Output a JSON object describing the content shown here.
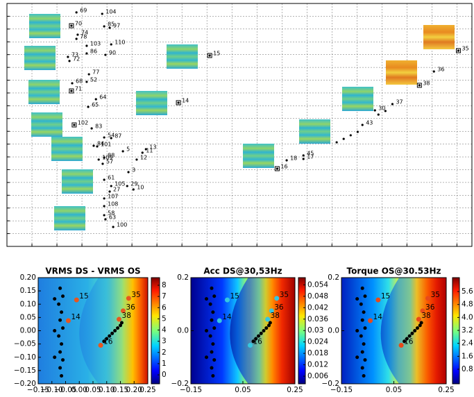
{
  "chart_data": [
    {
      "type": "scatter",
      "xlim": [
        -1,
        17.6
      ],
      "ylim": [
        0,
        19
      ],
      "xticks": [
        0,
        1,
        2,
        3,
        4,
        5,
        6,
        7,
        8,
        9,
        10,
        11,
        12,
        13,
        14,
        15,
        16,
        17
      ],
      "yticks": [
        1,
        2,
        3,
        4,
        5,
        6,
        7,
        8,
        9,
        10,
        11,
        12,
        13,
        14,
        15,
        16,
        17,
        18
      ],
      "grid": true,
      "x": [
        1.78,
        2.81,
        1.58,
        2.89,
        3.11,
        1.83,
        1.78,
        2.19,
        3.17,
        2.19,
        2.94,
        1.44,
        1.5,
        2.28,
        2.19,
        1.61,
        1.58,
        2.56,
        2.25,
        1.69,
        2.39,
        2.89,
        3.17,
        2.47,
        2.61,
        3.64,
        4.56,
        4.42,
        2.89,
        4.19,
        2.67,
        2.83,
        3.86,
        2.89,
        3.81,
        3.17,
        3.11,
        4.06,
        2.89,
        2.89,
        2.89,
        2.94,
        3.25,
        7.11,
        5.86,
        17.06,
        16.08,
        15.5,
        14.42,
        13.72,
        13.22,
        10.86,
        10.86,
        10.19,
        9.81,
        12.19,
        12.47,
        12.75,
        13.03,
        13.86,
        14.14
      ],
      "y": [
        18.3,
        18.19,
        17.26,
        17.21,
        17.1,
        16.56,
        16.23,
        15.69,
        15.8,
        15.09,
        14.98,
        14.82,
        14.5,
        13.46,
        12.87,
        12.76,
        12.16,
        11.51,
        10.91,
        9.5,
        9.23,
        8.52,
        8.47,
        7.87,
        7.82,
        7.44,
        7.6,
        7.33,
        6.95,
        6.79,
        6.79,
        6.46,
        5.81,
        5.21,
        4.72,
        4.72,
        4.29,
        4.45,
        3.75,
        3.15,
        2.44,
        2.12,
        1.52,
        14.93,
        11.24,
        15.31,
        13.68,
        12.6,
        11.13,
        10.64,
        9.5,
        7.11,
        6.84,
        6.73,
        6.08,
        8.14,
        8.41,
        8.69,
        8.96,
        10.31,
        10.59
      ],
      "point_labels": [
        "69",
        "104",
        "70",
        "85",
        "97",
        "74",
        "78",
        "103",
        "110",
        "86",
        "90",
        "73",
        "72",
        "77",
        "52",
        "68",
        "71",
        "64",
        "65",
        "102",
        "83",
        "54",
        "87",
        "84",
        "101",
        "5",
        "13",
        "11",
        "88",
        "12",
        "109",
        "57",
        "3",
        "61",
        "29",
        "105",
        "27",
        "10",
        "107",
        "108",
        "58",
        "63",
        "100",
        "15",
        "14",
        "35",
        "36",
        "38",
        "37",
        "30",
        "43",
        "45",
        "17",
        "18",
        "16",
        null,
        null,
        null,
        null,
        null,
        null
      ],
      "boxed": [
        false,
        false,
        true,
        false,
        false,
        false,
        false,
        false,
        false,
        false,
        false,
        false,
        false,
        false,
        false,
        false,
        true,
        false,
        false,
        true,
        false,
        false,
        false,
        false,
        false,
        false,
        false,
        false,
        false,
        false,
        false,
        false,
        false,
        false,
        false,
        false,
        false,
        false,
        false,
        false,
        false,
        false,
        false,
        true,
        true,
        true,
        false,
        true,
        false,
        false,
        false,
        false,
        false,
        false,
        true,
        false,
        false,
        false,
        false,
        false,
        false
      ],
      "color": "#000000"
    },
    {
      "type": "contour",
      "title": "VRMS DS - VRMS OS",
      "xlim": [
        -0.15,
        0.25
      ],
      "ylim": [
        -0.2,
        0.2
      ],
      "xticks": [
        {
          "value": -0.15,
          "label": "−0.15"
        },
        {
          "value": -0.1,
          "label": "−0.10"
        },
        {
          "value": -0.05,
          "label": "−0.05"
        },
        {
          "value": 0,
          "label": "0.00"
        },
        {
          "value": 0.05,
          "label": "0.05"
        },
        {
          "value": 0.1,
          "label": "0.10"
        },
        {
          "value": 0.15,
          "label": "0.15"
        },
        {
          "value": 0.2,
          "label": "0.20"
        },
        {
          "value": 0.25,
          "label": "0.25"
        }
      ],
      "yticks": [
        {
          "value": 0.2,
          "label": "0.20"
        },
        {
          "value": 0.15,
          "label": "0.15"
        },
        {
          "value": 0.1,
          "label": "0.10"
        },
        {
          "value": 0.05,
          "label": "0.05"
        },
        {
          "value": 0,
          "label": "0.00"
        },
        {
          "value": -0.05,
          "label": "−0.05"
        },
        {
          "value": -0.1,
          "label": "−0.10"
        },
        {
          "value": -0.15,
          "label": "−0.15"
        },
        {
          "value": -0.2,
          "label": "−0.20"
        }
      ],
      "colorbar_lim": [
        -0.8,
        8.68
      ],
      "colorbar_ticks": [
        8,
        7,
        6,
        5,
        4,
        3,
        2,
        1,
        0
      ],
      "x": [
        0.18,
        0.16,
        0.145,
        -0.01,
        -0.04,
        0.078,
        -0.07,
        -0.06,
        -0.075,
        -0.065,
        -0.07,
        -0.06,
        -0.075,
        -0.065,
        -0.07,
        -0.06,
        -0.07,
        -0.065,
        -0.09,
        -0.09,
        -0.09,
        0.09,
        0.1,
        0.11,
        0.12,
        0.13,
        0.14,
        0.15,
        0.155
      ],
      "y": [
        0.122,
        0.075,
        0.043,
        0.116,
        0.038,
        -0.055,
        0.16,
        0.13,
        0.1,
        0.07,
        0.04,
        0.01,
        -0.02,
        -0.05,
        -0.08,
        -0.11,
        -0.14,
        -0.17,
        0.12,
        0,
        -0.1,
        -0.04,
        -0.03,
        -0.02,
        -0.01,
        0,
        0.01,
        0.02,
        0.03
      ],
      "point_labels": [
        "35",
        "36",
        "38",
        "15",
        "14",
        "16",
        null,
        null,
        null,
        null,
        null,
        null,
        null,
        null,
        null,
        null,
        null,
        null,
        null,
        null,
        null,
        null,
        null,
        null,
        null,
        null,
        null,
        null,
        null
      ],
      "color": "#000000",
      "label_color": "#e8561f"
    },
    {
      "type": "contour",
      "title": "Acc DS@30,53Hz",
      "xlim": [
        -0.15,
        0.25
      ],
      "ylim": [
        -0.2,
        0.2
      ],
      "xticks": [
        {
          "value": -0.15,
          "label": "−0.15"
        },
        0.05,
        0.25
      ],
      "yticks": [
        0.2,
        {
          "value": 0,
          "label": "0.0"
        },
        {
          "value": -0.2,
          "label": "−0.2"
        }
      ],
      "colorbar_lim": [
        0.002,
        0.0578
      ],
      "colorbar_ticks": [
        0.054,
        0.048,
        0.042,
        0.036,
        0.03,
        0.024,
        0.018,
        0.012,
        0.006
      ],
      "x": [
        0.18,
        0.16,
        0.145,
        -0.01,
        -0.04,
        0.078,
        -0.07,
        -0.06,
        -0.075,
        -0.065,
        -0.07,
        -0.06,
        -0.075,
        -0.065,
        -0.07,
        -0.06,
        -0.07,
        -0.065,
        -0.09,
        -0.09,
        -0.09,
        0.09,
        0.1,
        0.11,
        0.12,
        0.13,
        0.14,
        0.15,
        0.155
      ],
      "y": [
        0.122,
        0.075,
        0.043,
        0.116,
        0.038,
        -0.055,
        0.16,
        0.13,
        0.1,
        0.07,
        0.04,
        0.01,
        -0.02,
        -0.05,
        -0.08,
        -0.11,
        -0.14,
        -0.17,
        0.12,
        0,
        -0.1,
        -0.04,
        -0.03,
        -0.02,
        -0.01,
        0,
        0.01,
        0.02,
        0.03
      ],
      "point_labels": [
        "35",
        "36",
        "38",
        "15",
        "14",
        "16",
        null,
        null,
        null,
        null,
        null,
        null,
        null,
        null,
        null,
        null,
        null,
        null,
        null,
        null,
        null,
        null,
        null,
        null,
        null,
        null,
        null,
        null,
        null
      ],
      "color": "#000000",
      "label_color": "#35c8e0"
    },
    {
      "type": "contour",
      "title": "Torque OS@30.53Hz",
      "xlim": [
        -0.15,
        0.25
      ],
      "ylim": [
        -0.2,
        0.2
      ],
      "xticks": [
        {
          "value": -0.15,
          "label": "−0.15"
        },
        0.05,
        0.25
      ],
      "yticks": [
        0.2,
        {
          "value": 0,
          "label": "0.0"
        },
        {
          "value": -0.2,
          "label": "−0.2"
        }
      ],
      "colorbar_lim": [
        -0.1,
        6.46
      ],
      "colorbar_ticks": [
        5.6,
        4.8,
        {
          "value": 4,
          "label": "4.0"
        },
        3.2,
        2.4,
        1.6,
        0.8
      ],
      "x": [
        0.18,
        0.16,
        0.145,
        -0.01,
        -0.04,
        0.078,
        -0.07,
        -0.06,
        -0.075,
        -0.065,
        -0.07,
        -0.06,
        -0.075,
        -0.065,
        -0.07,
        -0.06,
        -0.07,
        -0.065,
        -0.09,
        -0.09,
        -0.09,
        0.09,
        0.1,
        0.11,
        0.12,
        0.13,
        0.14,
        0.15,
        0.155
      ],
      "y": [
        0.122,
        0.075,
        0.043,
        0.116,
        0.038,
        -0.055,
        0.16,
        0.13,
        0.1,
        0.07,
        0.04,
        0.01,
        -0.02,
        -0.05,
        -0.08,
        -0.11,
        -0.14,
        -0.17,
        0.12,
        0,
        -0.1,
        -0.04,
        -0.03,
        -0.02,
        -0.01,
        0,
        0.01,
        0.02,
        0.03
      ],
      "point_labels": [
        "35",
        "36",
        "38",
        "15",
        "14",
        "16",
        null,
        null,
        null,
        null,
        null,
        null,
        null,
        null,
        null,
        null,
        null,
        null,
        null,
        null,
        null,
        null,
        null,
        null,
        null,
        null,
        null,
        null,
        null
      ],
      "color": "#000000",
      "label_color": "#e84a1a"
    }
  ]
}
